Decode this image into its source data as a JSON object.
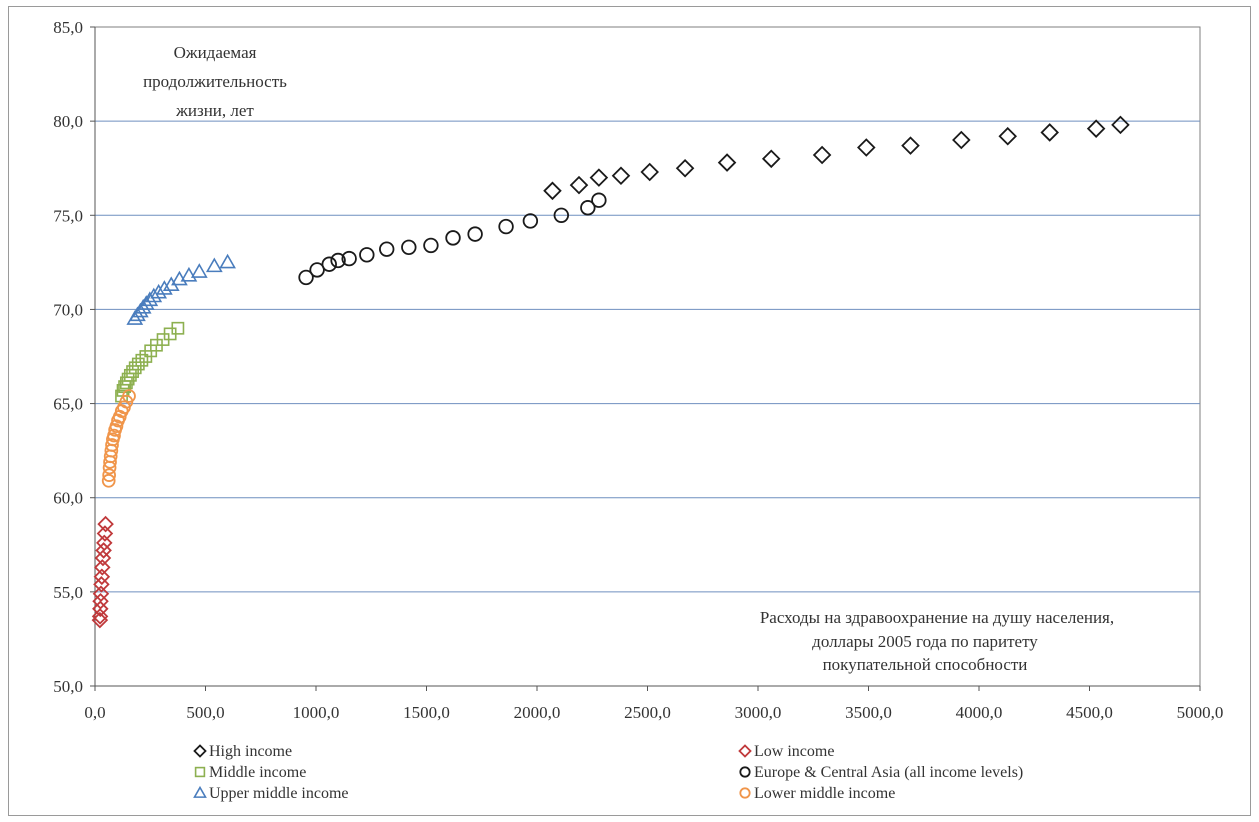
{
  "chart_data": {
    "type": "scatter",
    "ylabel_lines": [
      "Ожидаемая",
      "продолжительность",
      "жизни, лет"
    ],
    "xlabel_lines": [
      "Расходы на здравоохранение на душу населения,",
      "доллары 2005 года по паритету",
      "покупательной способности"
    ],
    "xlim": [
      0,
      5000
    ],
    "ylim": [
      50,
      85
    ],
    "x_ticks": [
      0,
      500,
      1000,
      1500,
      2000,
      2500,
      3000,
      3500,
      4000,
      4500,
      5000
    ],
    "x_tick_labels": [
      "0,0",
      "500,0",
      "1000,0",
      "1500,0",
      "2000,0",
      "2500,0",
      "3000,0",
      "3500,0",
      "4000,0",
      "4500,0",
      "5000,0"
    ],
    "y_ticks": [
      50,
      55,
      60,
      65,
      70,
      75,
      80,
      85
    ],
    "y_tick_labels": [
      "50,0",
      "55,0",
      "60,0",
      "65,0",
      "70,0",
      "75,0",
      "80,0",
      "85,0"
    ],
    "grid": "horizontal",
    "legend_position": "bottom",
    "series": [
      {
        "name": "High income",
        "marker": "diamond",
        "color": "#1a1a1a",
        "x": [
          2070,
          2190,
          2280,
          2380,
          2510,
          2670,
          2860,
          3060,
          3290,
          3490,
          3690,
          3920,
          4130,
          4320,
          4530,
          4640
        ],
        "y": [
          76.3,
          76.6,
          77.0,
          77.1,
          77.3,
          77.5,
          77.8,
          78.0,
          78.2,
          78.6,
          78.7,
          79.0,
          79.2,
          79.4,
          79.6,
          79.8
        ]
      },
      {
        "name": "Low income",
        "marker": "diamond",
        "color": "#c0393b",
        "x": [
          22,
          23,
          24,
          25,
          27,
          29,
          31,
          33,
          36,
          39,
          42,
          45,
          48
        ],
        "y": [
          53.5,
          53.7,
          54.1,
          54.5,
          54.9,
          55.4,
          55.8,
          56.3,
          56.8,
          57.2,
          57.6,
          58.1,
          58.6
        ]
      },
      {
        "name": "Middle income",
        "marker": "square",
        "color": "#8db050",
        "x": [
          120,
          127,
          134,
          142,
          150,
          160,
          170,
          182,
          196,
          212,
          230,
          252,
          278,
          308,
          340,
          375
        ],
        "y": [
          65.4,
          65.7,
          65.9,
          66.1,
          66.3,
          66.5,
          66.7,
          66.9,
          67.1,
          67.3,
          67.5,
          67.8,
          68.1,
          68.4,
          68.7,
          69.0
        ]
      },
      {
        "name": "Europe & Central Asia (all income levels)",
        "marker": "circle",
        "color": "#1a1a1a",
        "x": [
          955,
          1005,
          1060,
          1100,
          1150,
          1230,
          1320,
          1420,
          1520,
          1620,
          1720,
          1860,
          1970,
          2110,
          2230,
          2280
        ],
        "y": [
          71.7,
          72.1,
          72.4,
          72.6,
          72.7,
          72.9,
          73.2,
          73.3,
          73.4,
          73.8,
          74.0,
          74.4,
          74.7,
          75.0,
          75.4,
          75.8
        ]
      },
      {
        "name": "Upper middle income",
        "marker": "triangle",
        "color": "#4a7dbd",
        "x": [
          180,
          192,
          205,
          218,
          232,
          248,
          266,
          288,
          314,
          345,
          382,
          425,
          472,
          540,
          600
        ],
        "y": [
          69.5,
          69.7,
          69.9,
          70.1,
          70.3,
          70.5,
          70.7,
          70.9,
          71.1,
          71.3,
          71.6,
          71.8,
          72.0,
          72.3,
          72.5
        ]
      },
      {
        "name": "Lower middle income",
        "marker": "circle",
        "color": "#f0954a",
        "x": [
          62,
          64,
          66,
          68,
          71,
          74,
          77,
          81,
          86,
          91,
          97,
          104,
          112,
          121,
          131,
          142,
          154
        ],
        "y": [
          60.9,
          61.2,
          61.6,
          61.9,
          62.2,
          62.5,
          62.8,
          63.1,
          63.3,
          63.6,
          63.8,
          64.1,
          64.3,
          64.6,
          64.8,
          65.1,
          65.4
        ]
      }
    ],
    "legend_rows": [
      [
        "High income",
        "Low income"
      ],
      [
        "Middle income",
        "Europe & Central Asia (all income levels)"
      ],
      [
        "Upper middle income",
        "Lower middle income"
      ]
    ]
  }
}
